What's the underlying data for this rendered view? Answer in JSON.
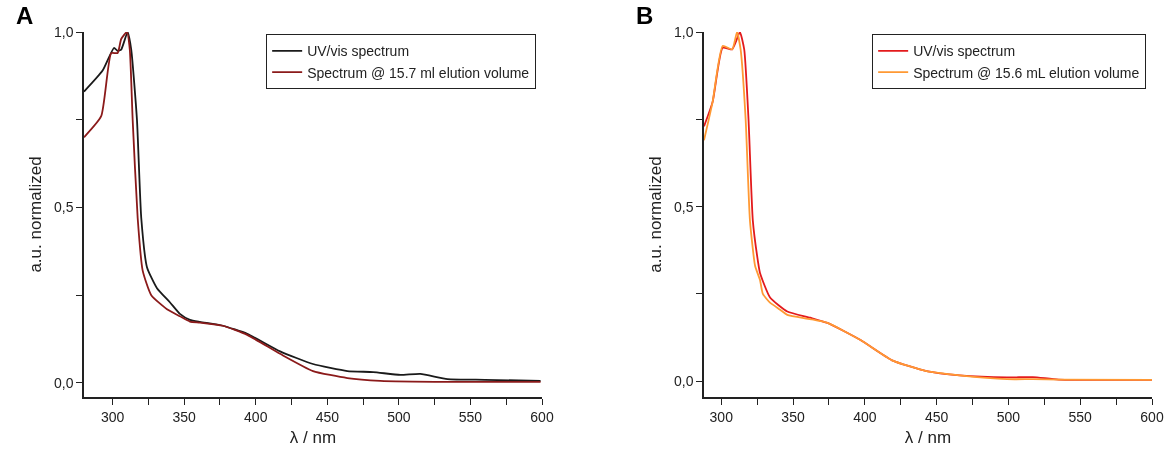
{
  "chart_data": [
    {
      "type": "line",
      "title": "A",
      "xlabel": "λ / nm",
      "ylabel": "a.u. normalized",
      "xlim": [
        280,
        600
      ],
      "ylim": [
        -0.04,
        1.0
      ],
      "xticks": [
        300,
        {
          "value": 325,
          "label": null
        },
        350,
        {
          "value": 375,
          "label": null
        },
        400,
        {
          "value": 425,
          "label": null
        },
        450,
        {
          "value": 475,
          "label": null
        },
        500,
        {
          "value": 525,
          "label": null
        },
        550,
        {
          "value": 575,
          "label": null
        },
        600
      ],
      "yticks": [
        {
          "value": 0,
          "label": "0,0"
        },
        {
          "value": 0.25,
          "label": null
        },
        {
          "value": 0.5,
          "label": "0,5"
        },
        {
          "value": 0.75,
          "label": null
        },
        {
          "value": 1.0,
          "label": "1,0"
        }
      ],
      "legend": "top right",
      "line_style": "solid",
      "marker": "none",
      "series": [
        {
          "name": "UV/vis spectrum",
          "color": "#1a1a1a",
          "x": [
            280,
            293,
            301,
            303.5,
            306,
            310.5,
            313,
            317,
            320,
            324,
            331,
            340,
            347,
            354,
            361,
            377,
            394,
            417,
            440,
            464,
            482,
            501,
            515,
            534,
            560,
            599
          ],
          "values": [
            0.83,
            0.89,
            0.955,
            0.946,
            0.95,
            1.0,
            0.95,
            0.75,
            0.47,
            0.33,
            0.27,
            0.23,
            0.197,
            0.18,
            0.174,
            0.163,
            0.14,
            0.09,
            0.054,
            0.034,
            0.031,
            0.023,
            0.026,
            0.011,
            0.009,
            0.006
          ]
        },
        {
          "name": "Spectrum @ 15.7 ml elution volume",
          "color": "#8b1a1a",
          "x": [
            280,
            292,
            299,
            303.5,
            306,
            310,
            312,
            314,
            317.5,
            321,
            327,
            338,
            347,
            354,
            361,
            377,
            394,
            417,
            440,
            464,
            487,
            534,
            599
          ],
          "values": [
            0.7,
            0.76,
            0.94,
            0.94,
            0.98,
            1.0,
            0.95,
            0.75,
            0.47,
            0.32,
            0.25,
            0.21,
            0.19,
            0.175,
            0.172,
            0.163,
            0.137,
            0.083,
            0.034,
            0.014,
            0.006,
            0.003,
            0.003
          ]
        }
      ]
    },
    {
      "type": "line",
      "title": "B",
      "xlabel": "λ / nm",
      "ylabel": "a.u. normalized",
      "xlim": [
        288,
        600
      ],
      "ylim": [
        -0.045,
        1.0
      ],
      "xticks": [
        300,
        {
          "value": 325,
          "label": null
        },
        350,
        {
          "value": 375,
          "label": null
        },
        400,
        {
          "value": 425,
          "label": null
        },
        450,
        {
          "value": 475,
          "label": null
        },
        500,
        {
          "value": 525,
          "label": null
        },
        550,
        {
          "value": 575,
          "label": null
        },
        600
      ],
      "yticks": [
        {
          "value": 0,
          "label": "0,0"
        },
        {
          "value": 0.25,
          "label": null
        },
        {
          "value": 0.5,
          "label": "0,5"
        },
        {
          "value": 0.75,
          "label": null
        },
        {
          "value": 1.0,
          "label": "1,0"
        }
      ],
      "legend": "top right",
      "line_style": "solid",
      "marker": "none",
      "series": [
        {
          "name": "UV/vis spectrum",
          "color": "#e31a1c",
          "x": [
            288,
            294,
            301,
            307.6,
            310,
            313,
            316,
            319,
            322,
            325.7,
            327,
            334,
            346,
            362,
            374,
            397,
            419,
            443,
            466,
            499,
            517,
            535,
            600
          ],
          "values": [
            0.73,
            0.8,
            0.955,
            0.95,
            0.97,
            1.0,
            0.95,
            0.75,
            0.46,
            0.34,
            0.31,
            0.24,
            0.2,
            0.182,
            0.167,
            0.118,
            0.06,
            0.029,
            0.017,
            0.011,
            0.012,
            0.005,
            0.004
          ]
        },
        {
          "name": "Spectrum @ 15.6 mL elution volume",
          "color": "#ff9933",
          "x": [
            288,
            294,
            301,
            307.6,
            311,
            313.5,
            317,
            320,
            323.6,
            327,
            329,
            334,
            341,
            346,
            362,
            374,
            397,
            419,
            443,
            466,
            499,
            517,
            535,
            600
          ],
          "values": [
            0.69,
            0.8,
            0.96,
            0.95,
            1.0,
            0.95,
            0.75,
            0.46,
            0.33,
            0.29,
            0.25,
            0.225,
            0.205,
            0.19,
            0.178,
            0.167,
            0.118,
            0.06,
            0.029,
            0.017,
            0.006,
            0.006,
            0.005,
            0.004
          ]
        }
      ]
    }
  ]
}
